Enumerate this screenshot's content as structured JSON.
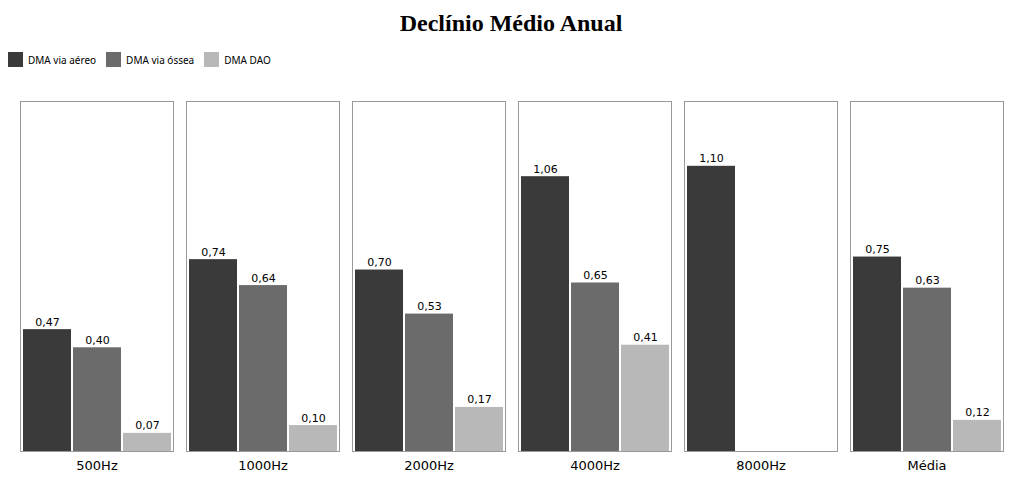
{
  "chart_data": {
    "type": "bar",
    "title": "Declínio Médio Anual",
    "categories": [
      "500Hz",
      "1000Hz",
      "2000Hz",
      "4000Hz",
      "8000Hz",
      "Média"
    ],
    "series": [
      {
        "name": "DMA via aéreo",
        "color": "#3a3a3a",
        "values": [
          0.47,
          0.74,
          0.7,
          1.06,
          1.1,
          0.75
        ],
        "value_labels": [
          "0,47",
          "0,74",
          "0,70",
          "1,06",
          "1,10",
          "0,75"
        ]
      },
      {
        "name": "DMA via óssea",
        "color": "#6b6b6b",
        "values": [
          0.4,
          0.64,
          0.53,
          0.65,
          null,
          0.63
        ],
        "value_labels": [
          "0,40",
          "0,64",
          "0,53",
          "0,65",
          null,
          "0,63"
        ]
      },
      {
        "name": "DMA DAO",
        "color": "#b8b8b8",
        "values": [
          0.07,
          0.1,
          0.17,
          0.41,
          null,
          0.12
        ],
        "value_labels": [
          "0,07",
          "0,10",
          "0,17",
          "0,41",
          null,
          "0,12"
        ]
      }
    ],
    "ylim": [
      0,
      1.35
    ],
    "data_labels": true,
    "tick_labels": "x",
    "grid": false,
    "legend": "top"
  }
}
